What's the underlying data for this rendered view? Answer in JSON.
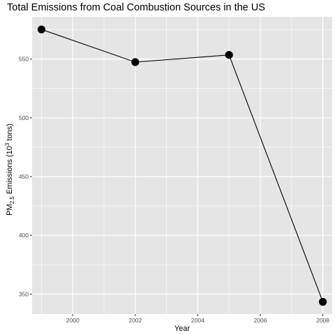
{
  "chart_data": {
    "type": "line",
    "title": "Total Emissions from Coal Combustion Sources in the US",
    "xlabel": "Year",
    "ylabel": {
      "prefix": "PM",
      "subscript": "2.5",
      "middle": " Emissions (10",
      "superscript": "3",
      "suffix": " tons)"
    },
    "x": [
      1999,
      2002,
      2005,
      2008
    ],
    "y": [
      575.2,
      547.4,
      553.5,
      343.4
    ],
    "xlim": [
      1998.7,
      2008.3
    ],
    "ylim": [
      333,
      586
    ],
    "x_ticks": [
      2000,
      2002,
      2004,
      2006,
      2008
    ],
    "x_tick_labels": [
      "2000",
      "2002",
      "2004",
      "2006",
      "2008"
    ],
    "y_ticks": [
      350,
      400,
      450,
      500,
      550
    ],
    "y_tick_labels": [
      "350",
      "400",
      "450",
      "500",
      "550"
    ],
    "grid": true,
    "panel_background": "#e5e5e5",
    "grid_color": "#ffffff",
    "line_color": "#000000",
    "point_color": "#000000"
  }
}
